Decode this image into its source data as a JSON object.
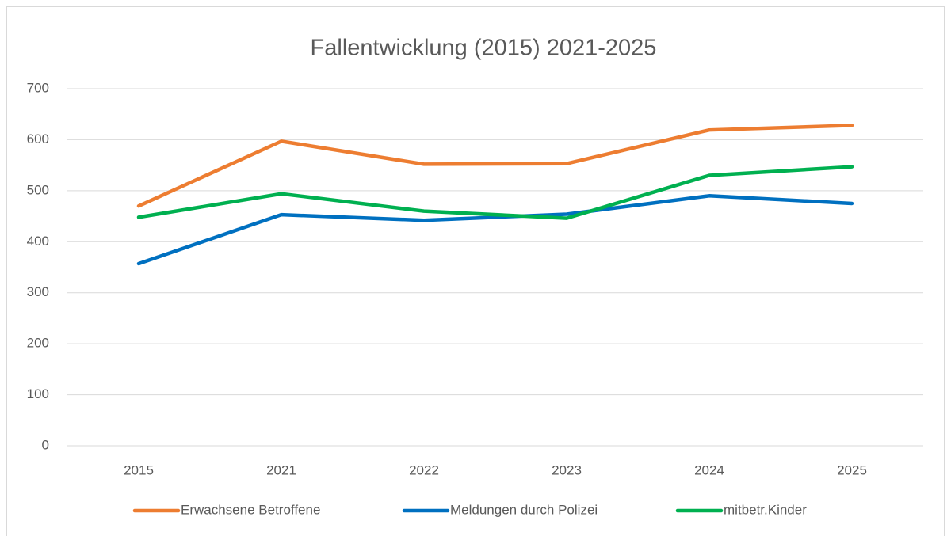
{
  "chart_data": {
    "type": "line",
    "title": "Fallentwicklung (2015) 2021-2025",
    "categories": [
      "2015",
      "2021",
      "2022",
      "2023",
      "2024",
      "2025"
    ],
    "series": [
      {
        "name": "Erwachsene Betroffene",
        "color": "#ed7d31",
        "values": [
          470,
          597,
          552,
          553,
          619,
          628
        ]
      },
      {
        "name": "Meldungen durch Polizei",
        "color": "#0070c0",
        "values": [
          357,
          453,
          442,
          454,
          490,
          475
        ]
      },
      {
        "name": "mitbetr.Kinder",
        "color": "#00b050",
        "values": [
          448,
          494,
          460,
          446,
          530,
          547
        ]
      }
    ],
    "ylim": [
      0,
      700
    ],
    "yticks": [
      0,
      100,
      200,
      300,
      400,
      500,
      600,
      700
    ],
    "grid": true,
    "legend": "bottom"
  }
}
